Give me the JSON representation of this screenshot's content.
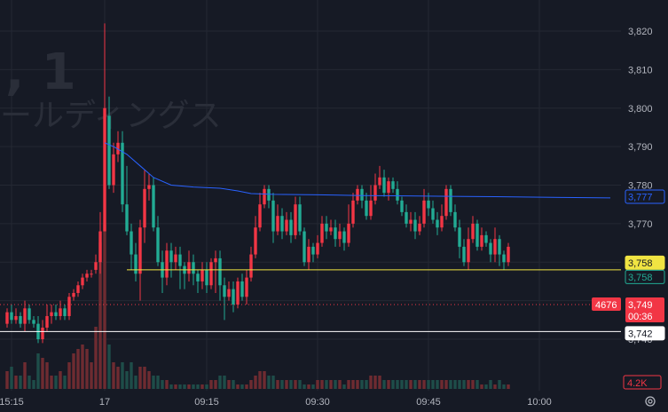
{
  "watermark": {
    "big_text": ", 1",
    "sub_text": "ールディングス"
  },
  "colors": {
    "background": "#161a25",
    "grid": "#242833",
    "up": "#f23645",
    "down": "#22ab94",
    "up_volume": "#6e2b31",
    "down_volume": "#1e4d49",
    "vwap": "#2962ff",
    "yellow_line": "#f0e442",
    "white_line": "#ffffff",
    "red_dotted": "#f23645"
  },
  "chart_data": {
    "type": "candlestick",
    "y_axis": {
      "range": [
        3738,
        3825
      ],
      "ticks": [
        "3,820",
        "3,810",
        "3,800",
        "3,790",
        "3,780",
        "3,770",
        "3,760",
        "3,750",
        "3,740"
      ]
    },
    "x_axis": {
      "ticks": [
        {
          "label": "15:15",
          "bar": 1
        },
        {
          "label": "17",
          "bar": 22
        },
        {
          "label": "09:15",
          "bar": 45
        },
        {
          "label": "09:30",
          "bar": 70
        },
        {
          "label": "09:45",
          "bar": 95
        },
        {
          "label": "10:00",
          "bar": 120
        }
      ]
    },
    "candles": [
      [
        3744,
        3747,
        3743,
        3748,
        0.4
      ],
      [
        3747,
        3745,
        3744,
        3749,
        0.5
      ],
      [
        3745,
        3746,
        3744,
        3748,
        0.3
      ],
      [
        3746,
        3744,
        3743,
        3747,
        0.3
      ],
      [
        3744,
        3748,
        3742,
        3750,
        0.6
      ],
      [
        3748,
        3745,
        3744,
        3749,
        0.3
      ],
      [
        3745,
        3744,
        3743,
        3746,
        0.2
      ],
      [
        3744,
        3740,
        3739,
        3746,
        0.8
      ],
      [
        3740,
        3743,
        3739,
        3745,
        0.7
      ],
      [
        3743,
        3746,
        3742,
        3749,
        0.6
      ],
      [
        3746,
        3747,
        3744,
        3749,
        0.3
      ],
      [
        3747,
        3746,
        3745,
        3749,
        0.3
      ],
      [
        3746,
        3748,
        3745,
        3750,
        0.4
      ],
      [
        3748,
        3746,
        3745,
        3749,
        0.3
      ],
      [
        3746,
        3751,
        3745,
        3752,
        0.6
      ],
      [
        3751,
        3752,
        3750,
        3753,
        0.8
      ],
      [
        3752,
        3754,
        3751,
        3755,
        0.9
      ],
      [
        3754,
        3756,
        3753,
        3757,
        1.0
      ],
      [
        3756,
        3757,
        3755,
        3758,
        0.9
      ],
      [
        3757,
        3757,
        3756,
        3758,
        0.6
      ],
      [
        3758,
        3760,
        3757,
        3762,
        1.4
      ],
      [
        3760,
        3768,
        3757,
        3773,
        3.3
      ],
      [
        3768,
        3800,
        3768,
        3822,
        3.7
      ],
      [
        3798,
        3780,
        3779,
        3803,
        1.0
      ],
      [
        3780,
        3788,
        3778,
        3791,
        0.6
      ],
      [
        3788,
        3791,
        3786,
        3794,
        0.5
      ],
      [
        3791,
        3775,
        3773,
        3794,
        0.6
      ],
      [
        3775,
        3768,
        3767,
        3785,
        0.4
      ],
      [
        3768,
        3762,
        3758,
        3770,
        0.6
      ],
      [
        3762,
        3757,
        3755,
        3765,
        0.3
      ],
      [
        3757,
        3769,
        3750,
        3771,
        0.5
      ],
      [
        3769,
        3779,
        3765,
        3784,
        0.5
      ],
      [
        3779,
        3780,
        3776,
        3783,
        0.4
      ],
      [
        3780,
        3769,
        3768,
        3782,
        0.3
      ],
      [
        3769,
        3760,
        3759,
        3772,
        0.3
      ],
      [
        3760,
        3756,
        3752,
        3763,
        0.2
      ],
      [
        3756,
        3763,
        3754,
        3765,
        0.2
      ],
      [
        3763,
        3760,
        3756,
        3765,
        0.1
      ],
      [
        3760,
        3762,
        3758,
        3764,
        0.1
      ],
      [
        3762,
        3759,
        3753,
        3764,
        0.1
      ],
      [
        3759,
        3757,
        3753,
        3760,
        0.1
      ],
      [
        3757,
        3760,
        3755,
        3763,
        0.1
      ],
      [
        3760,
        3757,
        3754,
        3762,
        0.1
      ],
      [
        3757,
        3755,
        3752,
        3758,
        0.1
      ],
      [
        3755,
        3758,
        3753,
        3760,
        0.1
      ],
      [
        3758,
        3754,
        3752,
        3760,
        0.1
      ],
      [
        3754,
        3760,
        3753,
        3761,
        0.2
      ],
      [
        3760,
        3761,
        3752,
        3763,
        0.2
      ],
      [
        3761,
        3754,
        3750,
        3763,
        0.3
      ],
      [
        3754,
        3751,
        3745,
        3756,
        0.3
      ],
      [
        3751,
        3753,
        3750,
        3755,
        0.2
      ],
      [
        3753,
        3749,
        3747,
        3755,
        0.2
      ],
      [
        3749,
        3755,
        3748,
        3756,
        0.1
      ],
      [
        3755,
        3751,
        3750,
        3757,
        0.1
      ],
      [
        3751,
        3756,
        3749,
        3758,
        0.1
      ],
      [
        3756,
        3762,
        3755,
        3764,
        0.2
      ],
      [
        3762,
        3769,
        3761,
        3772,
        0.3
      ],
      [
        3769,
        3775,
        3768,
        3778,
        0.4
      ],
      [
        3775,
        3779,
        3774,
        3780,
        0.4
      ],
      [
        3779,
        3776,
        3774,
        3780,
        0.3
      ],
      [
        3776,
        3768,
        3765,
        3778,
        0.3
      ],
      [
        3768,
        3772,
        3767,
        3775,
        0.2
      ],
      [
        3772,
        3768,
        3766,
        3774,
        0.2
      ],
      [
        3768,
        3771,
        3767,
        3773,
        0.2
      ],
      [
        3771,
        3767,
        3765,
        3773,
        0.2
      ],
      [
        3767,
        3775,
        3766,
        3777,
        0.2
      ],
      [
        3775,
        3768,
        3767,
        3777,
        0.2
      ],
      [
        3768,
        3760,
        3759,
        3769,
        0.1
      ],
      [
        3760,
        3764,
        3758,
        3766,
        0.1
      ],
      [
        3764,
        3762,
        3760,
        3765,
        0.1
      ],
      [
        3762,
        3765,
        3761,
        3767,
        0.2
      ],
      [
        3765,
        3770,
        3764,
        3772,
        0.2
      ],
      [
        3770,
        3768,
        3766,
        3772,
        0.2
      ],
      [
        3768,
        3769,
        3767,
        3771,
        0.2
      ],
      [
        3769,
        3766,
        3764,
        3771,
        0.2
      ],
      [
        3766,
        3768,
        3764,
        3770,
        0.2
      ],
      [
        3768,
        3765,
        3763,
        3769,
        0.1
      ],
      [
        3765,
        3770,
        3764,
        3775,
        0.2
      ],
      [
        3770,
        3776,
        3769,
        3778,
        0.2
      ],
      [
        3776,
        3779,
        3775,
        3780,
        0.2
      ],
      [
        3779,
        3776,
        3774,
        3780,
        0.2
      ],
      [
        3776,
        3772,
        3771,
        3778,
        0.2
      ],
      [
        3772,
        3776,
        3771,
        3780,
        0.3
      ],
      [
        3776,
        3780,
        3775,
        3783,
        0.3
      ],
      [
        3780,
        3782,
        3779,
        3785,
        0.3
      ],
      [
        3782,
        3778,
        3777,
        3784,
        0.2
      ],
      [
        3778,
        3781,
        3776,
        3782,
        0.2
      ],
      [
        3781,
        3779,
        3778,
        3782,
        0.2
      ],
      [
        3779,
        3776,
        3775,
        3781,
        0.2
      ],
      [
        3776,
        3773,
        3772,
        3777,
        0.2
      ],
      [
        3773,
        3770,
        3769,
        3775,
        0.2
      ],
      [
        3770,
        3771,
        3768,
        3773,
        0.2
      ],
      [
        3771,
        3768,
        3766,
        3773,
        0.2
      ],
      [
        3768,
        3770,
        3767,
        3772,
        0.2
      ],
      [
        3770,
        3776,
        3769,
        3779,
        0.2
      ],
      [
        3776,
        3774,
        3772,
        3778,
        0.2
      ],
      [
        3774,
        3771,
        3770,
        3776,
        0.2
      ],
      [
        3771,
        3769,
        3767,
        3773,
        0.2
      ],
      [
        3769,
        3772,
        3768,
        3775,
        0.2
      ],
      [
        3772,
        3779,
        3771,
        3780,
        0.2
      ],
      [
        3779,
        3773,
        3772,
        3780,
        0.2
      ],
      [
        3773,
        3769,
        3768,
        3775,
        0.2
      ],
      [
        3769,
        3764,
        3761,
        3771,
        0.2
      ],
      [
        3764,
        3760,
        3759,
        3766,
        0.2
      ],
      [
        3760,
        3766,
        3758,
        3769,
        0.2
      ],
      [
        3766,
        3770,
        3765,
        3772,
        0.2
      ],
      [
        3770,
        3764,
        3763,
        3771,
        0.2
      ],
      [
        3764,
        3767,
        3763,
        3769,
        0.1
      ],
      [
        3767,
        3765,
        3764,
        3768,
        0.1
      ],
      [
        3765,
        3762,
        3760,
        3766,
        0.2
      ],
      [
        3762,
        3766,
        3760,
        3769,
        0.1
      ],
      [
        3766,
        3762,
        3759,
        3767,
        0.2
      ],
      [
        3762,
        3760,
        3758,
        3763,
        0.1
      ],
      [
        3760,
        3764,
        3759,
        3765,
        0.1
      ]
    ],
    "vwap": [
      [
        22,
        3791
      ],
      [
        24,
        3790
      ],
      [
        27,
        3788
      ],
      [
        30,
        3785
      ],
      [
        33,
        3782
      ],
      [
        37,
        3780
      ],
      [
        42,
        3779.5
      ],
      [
        48,
        3779.2
      ],
      [
        52,
        3778.5
      ],
      [
        55,
        3777.8
      ],
      [
        60,
        3777.6
      ],
      [
        70,
        3777.5
      ],
      [
        80,
        3777.3
      ],
      [
        90,
        3777.2
      ],
      [
        100,
        3777.1
      ],
      [
        110,
        3777
      ],
      [
        125,
        3776.8
      ],
      [
        136,
        3776.7
      ]
    ],
    "horizontal_lines": [
      {
        "value": 3758,
        "style": "solid",
        "color": "yellow"
      },
      {
        "value": 3749,
        "style": "dotted",
        "color": "red"
      },
      {
        "value": 3742,
        "style": "solid",
        "color": "white"
      }
    ],
    "price_tags": {
      "vwap": "3,777",
      "yellow": "3,758",
      "teal": "3,758",
      "last_label": "4676",
      "last_price": "3,749",
      "countdown": "00:36",
      "white": "3,742",
      "volume": "4.2K",
      "hidden_tick": "3,750"
    }
  },
  "controls": {
    "settings_icon": "settings-gear-icon"
  }
}
